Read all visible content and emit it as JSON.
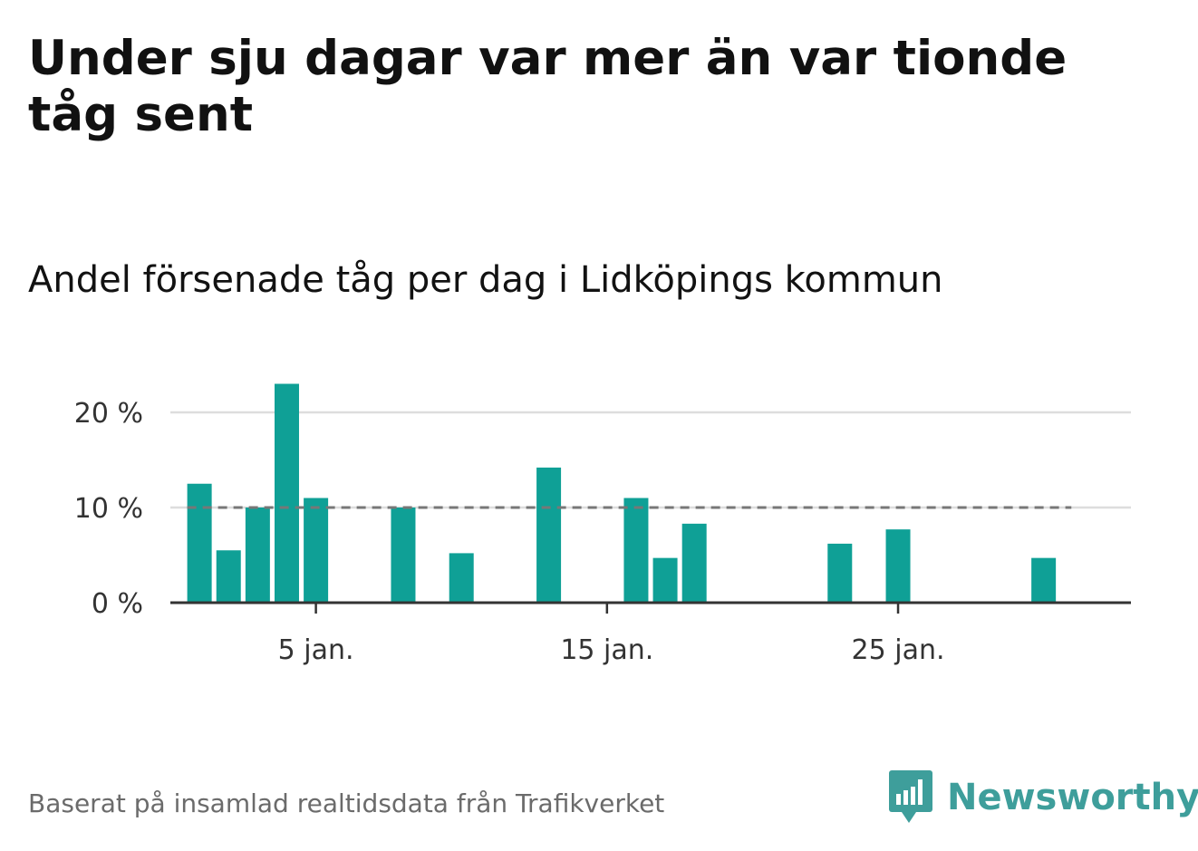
{
  "title": "Under sju dagar var mer än var tionde tåg sent",
  "subtitle": "Andel försenade tåg per dag i Lidköpings kommun",
  "source": "Baserat på insamlad realtidsdata från Trafikverket",
  "logo": {
    "text": "Newsworthy",
    "icon": "newsworthy-logo-icon"
  },
  "colors": {
    "bar": "#0fa096",
    "reference_line": "#777777",
    "grid": "#dddddd",
    "axis": "#333333",
    "logo": "#3e9e9b"
  },
  "chart_data": {
    "type": "bar",
    "title": "Andel försenade tåg per dag i Lidköpings kommun",
    "x": [
      1,
      2,
      3,
      4,
      5,
      6,
      7,
      8,
      9,
      10,
      11,
      12,
      13,
      14,
      15,
      16,
      17,
      18,
      19,
      20,
      21,
      22,
      23,
      24,
      25,
      26,
      27,
      28,
      29,
      30,
      31
    ],
    "values": [
      12.5,
      5.5,
      10.0,
      23.0,
      11.0,
      0,
      0,
      10.0,
      0,
      5.2,
      0,
      0,
      14.2,
      0,
      0,
      11.0,
      4.7,
      8.3,
      0,
      0,
      0,
      0,
      6.2,
      0,
      7.7,
      0,
      0,
      0,
      0,
      4.7,
      0
    ],
    "x_ticks": [
      5,
      15,
      25
    ],
    "x_tick_labels": [
      "5 jan.",
      "15 jan.",
      "25 jan."
    ],
    "y_ticks": [
      0,
      10,
      20
    ],
    "y_tick_labels": [
      "0 %",
      "10 %",
      "20 %"
    ],
    "ylim": [
      0,
      20
    ],
    "xlim": [
      0,
      33
    ],
    "reference_line": {
      "value": 10,
      "style": "dashed"
    },
    "grid": true,
    "xlabel": "",
    "ylabel": ""
  }
}
